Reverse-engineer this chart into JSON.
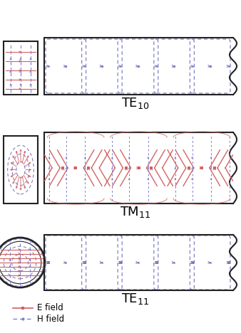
{
  "bg_color": "#ffffff",
  "e_color": "#d06060",
  "h_color": "#8080c8",
  "border_color": "#222222",
  "title_color": "#000000",
  "fig_width": 3.38,
  "fig_height": 4.68,
  "dpi": 100,
  "legend_e": "E field",
  "legend_h": "H field"
}
